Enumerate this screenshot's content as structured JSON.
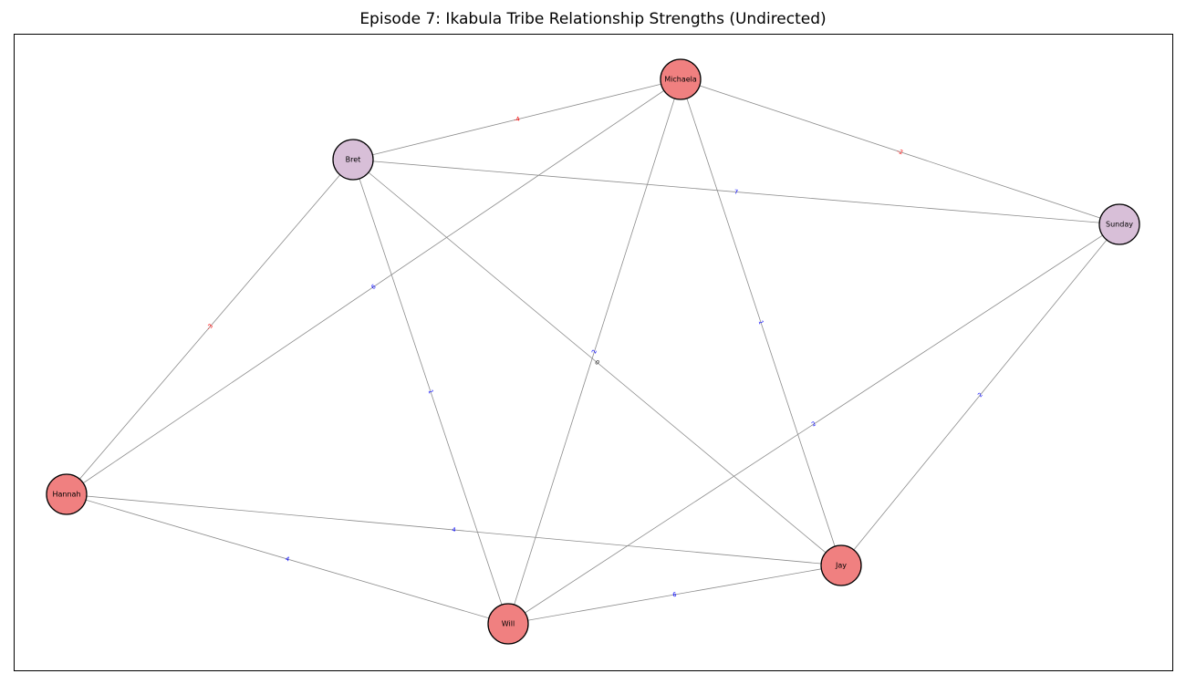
{
  "title": "Episode 7: Ikabula Tribe Relationship Strengths (Undirected)",
  "colors": {
    "node_red": "#f08080",
    "node_purple": "#d8bfd8",
    "edge": "#8c8c8c",
    "label_positive": "#0000ff",
    "label_negative": "#ff0000",
    "label_zero": "#000000"
  },
  "nodes": [
    {
      "id": "Michaela",
      "label": "Michaela",
      "color": "red"
    },
    {
      "id": "Bret",
      "label": "Bret",
      "color": "purple"
    },
    {
      "id": "Sunday",
      "label": "Sunday",
      "color": "purple"
    },
    {
      "id": "Hannah",
      "label": "Hannah",
      "color": "red"
    },
    {
      "id": "Jay",
      "label": "Jay",
      "color": "red"
    },
    {
      "id": "Will",
      "label": "Will",
      "color": "red"
    }
  ],
  "edges": [
    {
      "source": "Michaela",
      "target": "Bret",
      "weight": -4
    },
    {
      "source": "Michaela",
      "target": "Sunday",
      "weight": -2
    },
    {
      "source": "Michaela",
      "target": "Hannah",
      "weight": 6
    },
    {
      "source": "Michaela",
      "target": "Will",
      "weight": 2
    },
    {
      "source": "Michaela",
      "target": "Jay",
      "weight": 1
    },
    {
      "source": "Bret",
      "target": "Sunday",
      "weight": 7
    },
    {
      "source": "Bret",
      "target": "Hannah",
      "weight": -3
    },
    {
      "source": "Bret",
      "target": "Will",
      "weight": 1
    },
    {
      "source": "Bret",
      "target": "Jay",
      "weight": 0
    },
    {
      "source": "Sunday",
      "target": "Will",
      "weight": 2
    },
    {
      "source": "Sunday",
      "target": "Jay",
      "weight": 2
    },
    {
      "source": "Hannah",
      "target": "Jay",
      "weight": 4
    },
    {
      "source": "Hannah",
      "target": "Will",
      "weight": 4
    },
    {
      "source": "Will",
      "target": "Jay",
      "weight": 6
    }
  ]
}
